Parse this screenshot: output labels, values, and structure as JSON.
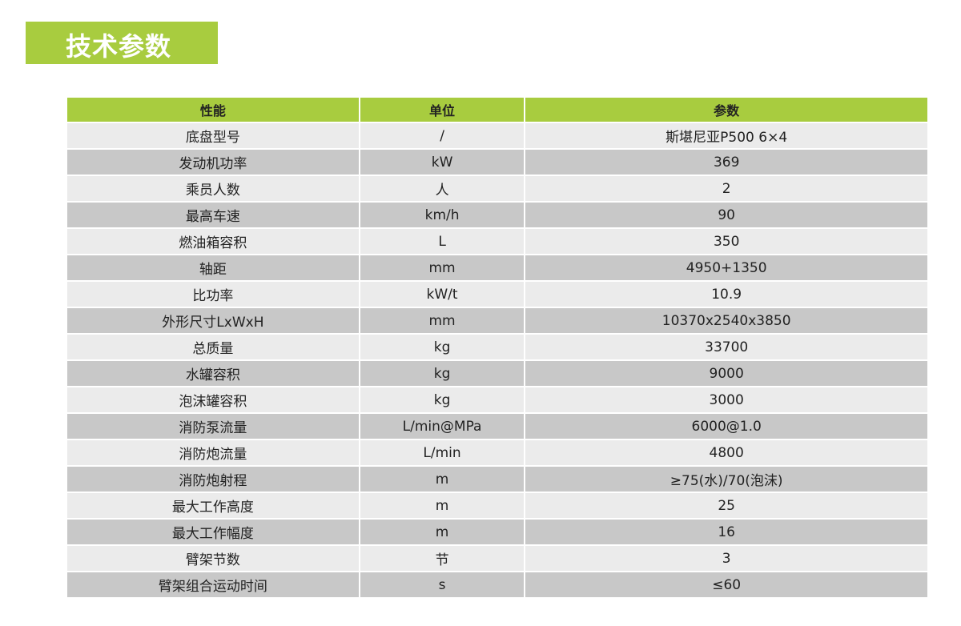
{
  "title": "技术参数",
  "colors": {
    "accent": "#a8cc3f",
    "row_light": "#ebebeb",
    "row_dark": "#c8c8c8"
  },
  "table": {
    "headers": [
      "性能",
      "单位",
      "参数"
    ],
    "rows": [
      [
        "底盘型号",
        "/",
        "斯堪尼亚P500 6×4"
      ],
      [
        "发动机功率",
        "kW",
        "369"
      ],
      [
        "乘员人数",
        "人",
        "2"
      ],
      [
        "最高车速",
        "km/h",
        "90"
      ],
      [
        "燃油箱容积",
        "L",
        "350"
      ],
      [
        "轴距",
        "mm",
        "4950+1350"
      ],
      [
        "比功率",
        "kW/t",
        "10.9"
      ],
      [
        "外形尺寸LxWxH",
        "mm",
        "10370x2540x3850"
      ],
      [
        "总质量",
        "kg",
        "33700"
      ],
      [
        "水罐容积",
        "kg",
        "9000"
      ],
      [
        "泡沫罐容积",
        "kg",
        "3000"
      ],
      [
        "消防泵流量",
        "L/min@MPa",
        "6000@1.0"
      ],
      [
        "消防炮流量",
        "L/min",
        "4800"
      ],
      [
        "消防炮射程",
        "m",
        "≥75(水)/70(泡沫)"
      ],
      [
        "最大工作高度",
        "m",
        "25"
      ],
      [
        "最大工作幅度",
        "m",
        "16"
      ],
      [
        "臂架节数",
        "节",
        "3"
      ],
      [
        "臂架组合运动时间",
        "s",
        "≤60"
      ]
    ]
  }
}
